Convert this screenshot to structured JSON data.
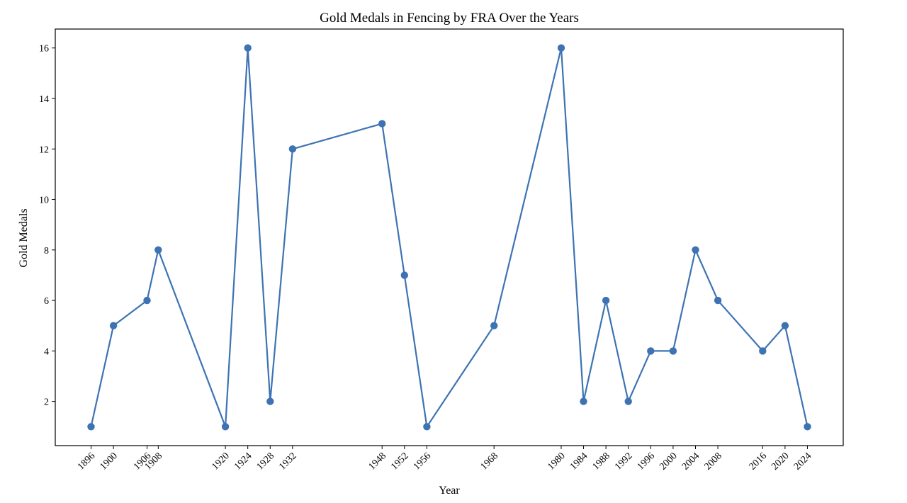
{
  "chart_data": {
    "type": "line",
    "title": "Gold Medals in Fencing by FRA Over the Years",
    "xlabel": "Year",
    "ylabel": "Gold Medals",
    "x": [
      1896,
      1900,
      1906,
      1908,
      1920,
      1924,
      1928,
      1932,
      1948,
      1952,
      1956,
      1968,
      1980,
      1984,
      1988,
      1992,
      1996,
      2000,
      2004,
      2008,
      2016,
      2020,
      2024
    ],
    "x_tick_labels": [
      "1896",
      "1900",
      "1906",
      "1908",
      "1920",
      "1924",
      "1928",
      "1932",
      "1948",
      "1952",
      "1956",
      "1968",
      "1980",
      "1984",
      "1988",
      "1992",
      "1996",
      "2000",
      "2004",
      "2008",
      "2016",
      "2020",
      "2024"
    ],
    "series": [
      {
        "values": [
          1,
          5,
          6,
          8,
          1,
          16,
          2,
          12,
          13,
          7,
          1,
          5,
          16,
          2,
          6,
          2,
          4,
          4,
          8,
          6,
          4,
          5,
          1
        ]
      }
    ],
    "y_ticks": [
      2,
      4,
      6,
      8,
      10,
      12,
      14,
      16
    ],
    "xlim": [
      1889.6,
      2030.4
    ],
    "ylim": [
      0.25,
      16.75
    ],
    "grid": false,
    "legend": "none",
    "line_color": "#3d73b3",
    "marker": "circle"
  }
}
